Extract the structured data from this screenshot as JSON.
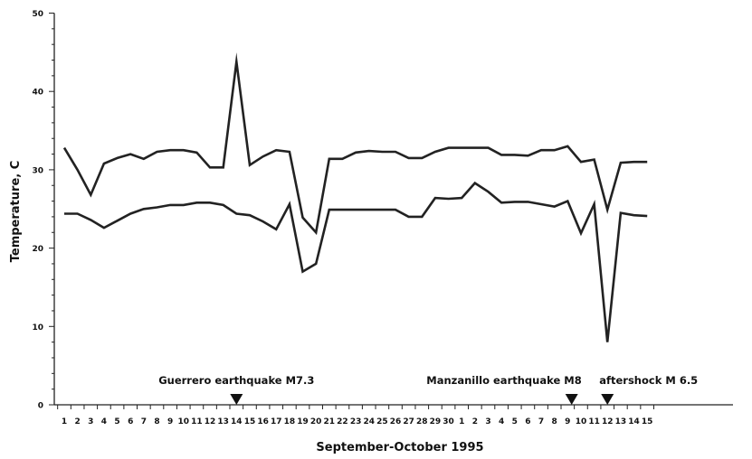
{
  "chart_data": {
    "type": "line",
    "xlabel": "September-October 1995",
    "ylabel": "Temperature, C",
    "ylim": [
      0,
      50
    ],
    "yticks": [
      0,
      10,
      20,
      30,
      40,
      50
    ],
    "categories": [
      "1",
      "2",
      "3",
      "4",
      "5",
      "6",
      "7",
      "8",
      "9",
      "10",
      "11",
      "12",
      "13",
      "14",
      "15",
      "16",
      "17",
      "18",
      "19",
      "20",
      "21",
      "22",
      "23",
      "24",
      "25",
      "26",
      "27",
      "28",
      "29",
      "30",
      "1",
      "2",
      "3",
      "4",
      "5",
      "6",
      "7",
      "8",
      "9",
      "10",
      "11",
      "12",
      "13",
      "14",
      "15"
    ],
    "grid": false,
    "line_color": "#222222",
    "series": [
      {
        "values": [
          32.8,
          30,
          26.8,
          30.8,
          31.5,
          32,
          31.4,
          32.3,
          32.5,
          32.5,
          32.2,
          30.3,
          30.3,
          43.8,
          30.6,
          31.7,
          32.5,
          32.3,
          23.9,
          22,
          31.4,
          31.4,
          32.2,
          32.4,
          32.3,
          32.3,
          31.5,
          31.5,
          32.3,
          32.8,
          32.8,
          32.8,
          32.8,
          31.9,
          31.9,
          31.8,
          32.5,
          32.5,
          33,
          31,
          31.3,
          24.9,
          30.9,
          31,
          31
        ]
      },
      {
        "values": [
          24.4,
          24.4,
          23.6,
          22.6,
          23.5,
          24.4,
          25,
          25.2,
          25.5,
          25.5,
          25.8,
          25.8,
          25.5,
          24.4,
          24.2,
          23.4,
          22.4,
          25.6,
          17,
          18,
          24.9,
          24.9,
          24.9,
          24.9,
          24.9,
          24.9,
          24,
          24,
          26.4,
          26.3,
          26.4,
          28.3,
          27.2,
          25.8,
          25.9,
          25.9,
          25.6,
          25.3,
          26,
          21.9,
          25.6,
          8,
          24.5,
          24.2,
          24.1
        ]
      }
    ],
    "annotations": [
      {
        "label": "Guerrero earthquake M7.3",
        "x_index": 13,
        "marker": "down-triangle"
      },
      {
        "label": "Manzanillo earthquake M8",
        "x_index": 38.3,
        "marker": "down-triangle"
      },
      {
        "label": "aftershock M 6.5",
        "x_index": 41,
        "marker": "down-triangle"
      }
    ]
  }
}
